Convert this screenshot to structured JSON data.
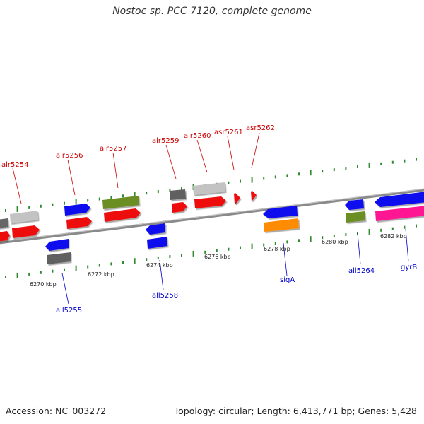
{
  "title": "Nostoc sp. PCC 7120, complete genome",
  "footer": {
    "accession": "Accession: NC_003272",
    "info": "Topology: circular; Length: 6,413,771 bp; Genes: 5,428"
  },
  "colors": {
    "backbone": "#8a8a8a",
    "ticks": "#2f8a2f",
    "top_label": "#cc0000",
    "bottom_label": "#0000cc"
  },
  "scale_labels": [
    "6270 kbp",
    "6272 kbp",
    "6274 kbp",
    "6276 kbp",
    "6278 kbp",
    "6280 kbp",
    "6282 kbp"
  ],
  "genes_top": [
    "alr5254",
    "alr5256",
    "alr5257",
    "alr5259",
    "alr5260",
    "asr5261",
    "asr5262"
  ],
  "genes_bottom": [
    "all5255",
    "all5258",
    "sigA",
    "all5264",
    "gyrB"
  ]
}
